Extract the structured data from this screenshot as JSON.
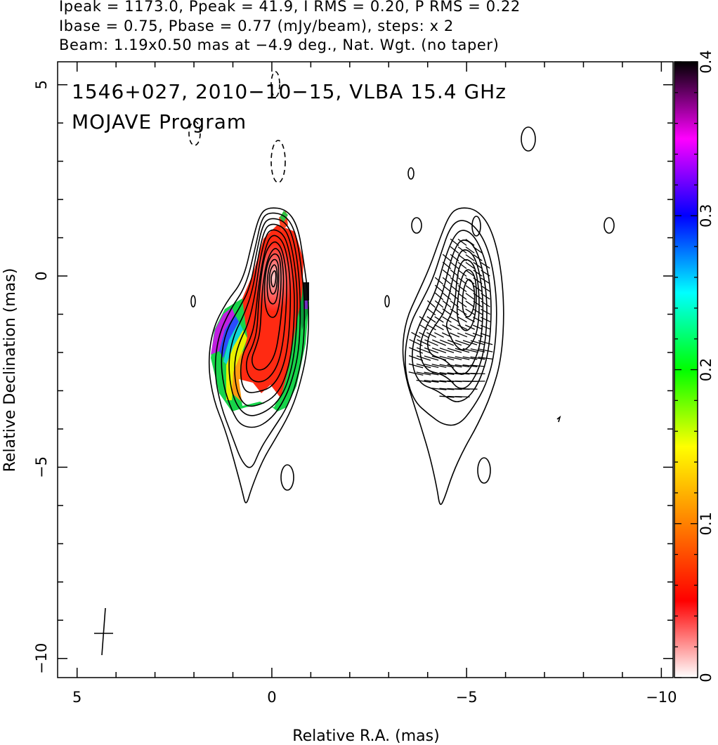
{
  "header": {
    "line1": "Ipeak = 1173.0, Ppeak = 41.9, I RMS = 0.20, P RMS = 0.22",
    "line2": "Ibase = 0.75, Pbase = 0.77 (mJy/beam), steps: x 2",
    "line3": "Beam: 1.19x0.50 mas at −4.9 deg., Nat. Wgt. (no taper)"
  },
  "map": {
    "title_line1": "1546+027, 2010−10−15, VLBA 15.4 GHz",
    "title_line2": "MOJAVE Program"
  },
  "chart_data": {
    "type": "contour map",
    "xlabel": "Relative R.A. (mas)",
    "ylabel": "Relative Declination (mas)",
    "xlim": [
      5.5,
      -10.3
    ],
    "ylim": [
      -10.5,
      5.6
    ],
    "x_ticks": [
      5,
      0,
      -5,
      -10
    ],
    "x_tick_labels": [
      "5",
      "0",
      "−5",
      "−10"
    ],
    "y_ticks": [
      5,
      0,
      -5,
      -10
    ],
    "y_tick_labels": [
      "5",
      "0",
      "−5",
      "−10"
    ],
    "colorbar": {
      "range": [
        0,
        0.4
      ],
      "ticks": [
        0,
        0.1,
        0.2,
        0.3,
        0.4
      ],
      "tick_labels": [
        "0",
        "0.1",
        "0.2",
        "0.3",
        "0.4"
      ],
      "colors": [
        "#ffffff",
        "#ff0000",
        "#ff8000",
        "#ffff00",
        "#00ff00",
        "#00ffff",
        "#0000ff",
        "#ff00ff",
        "#000000"
      ]
    },
    "contour_color": "#000000",
    "beam": {
      "major_mas": 1.19,
      "minor_mas": 0.5,
      "pa_deg": -4.9
    }
  }
}
